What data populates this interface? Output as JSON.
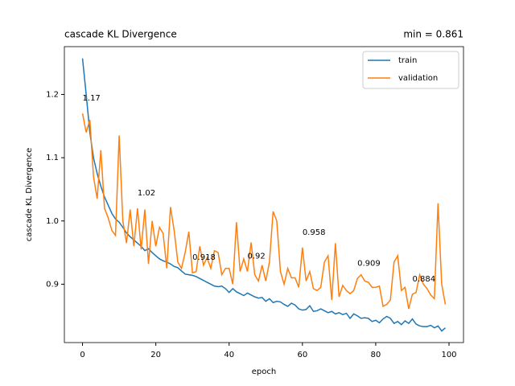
{
  "chart_data": {
    "type": "line",
    "title": "cascade KL Divergence",
    "title_right": "min = 0.861",
    "xlabel": "epoch",
    "ylabel": "cascade KL Divergence",
    "x": [
      0,
      1,
      2,
      3,
      4,
      5,
      6,
      7,
      8,
      9,
      10,
      11,
      12,
      13,
      14,
      15,
      16,
      17,
      18,
      19,
      20,
      21,
      22,
      23,
      24,
      25,
      26,
      27,
      28,
      29,
      30,
      31,
      32,
      33,
      34,
      35,
      36,
      37,
      38,
      39,
      40,
      41,
      42,
      43,
      44,
      45,
      46,
      47,
      48,
      49,
      50,
      51,
      52,
      53,
      54,
      55,
      56,
      57,
      58,
      59,
      60,
      61,
      62,
      63,
      64,
      65,
      66,
      67,
      68,
      69,
      70,
      71,
      72,
      73,
      74,
      75,
      76,
      77,
      78,
      79,
      80,
      81,
      82,
      83,
      84,
      85,
      86,
      87,
      88,
      89,
      90,
      91,
      92,
      93,
      94,
      95,
      96,
      97,
      98,
      99
    ],
    "series": [
      {
        "name": "train",
        "color": "#1f77b4",
        "values": [
          1.257,
          1.2,
          1.14,
          1.1,
          1.075,
          1.055,
          1.038,
          1.025,
          1.012,
          1.003,
          0.998,
          0.99,
          0.981,
          0.975,
          0.97,
          0.965,
          0.96,
          0.953,
          0.956,
          0.95,
          0.945,
          0.94,
          0.937,
          0.935,
          0.932,
          0.928,
          0.926,
          0.921,
          0.916,
          0.915,
          0.914,
          0.912,
          0.909,
          0.906,
          0.903,
          0.9,
          0.897,
          0.896,
          0.897,
          0.893,
          0.887,
          0.893,
          0.888,
          0.885,
          0.882,
          0.886,
          0.883,
          0.88,
          0.878,
          0.879,
          0.873,
          0.877,
          0.871,
          0.873,
          0.872,
          0.868,
          0.865,
          0.87,
          0.867,
          0.861,
          0.859,
          0.86,
          0.866,
          0.857,
          0.858,
          0.861,
          0.858,
          0.855,
          0.857,
          0.853,
          0.855,
          0.852,
          0.854,
          0.846,
          0.853,
          0.85,
          0.846,
          0.847,
          0.846,
          0.841,
          0.843,
          0.839,
          0.845,
          0.849,
          0.846,
          0.838,
          0.841,
          0.836,
          0.842,
          0.838,
          0.845,
          0.837,
          0.834,
          0.833,
          0.833,
          0.835,
          0.831,
          0.834,
          0.826,
          0.831
        ]
      },
      {
        "name": "validation",
        "color": "#ff7f0e",
        "values": [
          1.17,
          1.14,
          1.16,
          1.07,
          1.035,
          1.112,
          1.02,
          1.005,
          0.985,
          0.977,
          1.135,
          1.0,
          0.965,
          1.018,
          0.96,
          1.02,
          0.955,
          1.018,
          0.932,
          1.0,
          0.96,
          0.99,
          0.98,
          0.925,
          1.022,
          0.985,
          0.935,
          0.925,
          0.95,
          0.983,
          0.918,
          0.92,
          0.96,
          0.93,
          0.942,
          0.925,
          0.953,
          0.95,
          0.915,
          0.925,
          0.925,
          0.9,
          0.998,
          0.92,
          0.94,
          0.92,
          0.966,
          0.915,
          0.905,
          0.93,
          0.905,
          0.935,
          1.015,
          1.0,
          0.92,
          0.9,
          0.925,
          0.91,
          0.91,
          0.895,
          0.958,
          0.905,
          0.92,
          0.893,
          0.89,
          0.895,
          0.935,
          0.945,
          0.875,
          0.965,
          0.88,
          0.898,
          0.89,
          0.885,
          0.89,
          0.909,
          0.915,
          0.905,
          0.903,
          0.895,
          0.895,
          0.897,
          0.865,
          0.868,
          0.875,
          0.935,
          0.945,
          0.89,
          0.895,
          0.861,
          0.884,
          0.887,
          0.915,
          0.9,
          0.893,
          0.883,
          0.877,
          1.028,
          0.9,
          0.868
        ]
      }
    ],
    "annotations": [
      {
        "x": 0,
        "value": 1.17
      },
      {
        "x": 15,
        "value": 1.02
      },
      {
        "x": 30,
        "value": 0.918
      },
      {
        "x": 45,
        "value": 0.92
      },
      {
        "x": 60,
        "value": 0.958
      },
      {
        "x": 75,
        "value": 0.909
      },
      {
        "x": 90,
        "value": 0.884
      }
    ],
    "xlim": [
      -4.95,
      103.95
    ],
    "ylim": [
      0.8077,
      1.2756
    ],
    "xticks": [
      0,
      20,
      40,
      60,
      80,
      100
    ],
    "yticks": [
      0.9,
      {
        "value": 1,
        "label": "1.0"
      },
      1.1,
      1.2
    ],
    "legend": "upper right"
  }
}
